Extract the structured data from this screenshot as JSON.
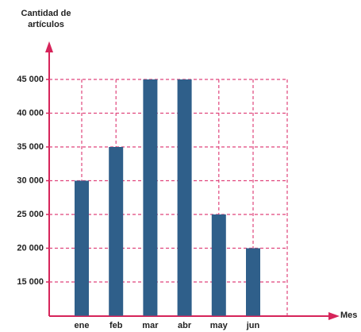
{
  "chart_data": {
    "type": "bar",
    "ylabel": "Cantidad de artículos",
    "xlabel": "Mes",
    "categories": [
      "ene",
      "feb",
      "mar",
      "abr",
      "may",
      "jun"
    ],
    "values": [
      30000,
      35000,
      45000,
      45000,
      25000,
      20000
    ],
    "color": "#2f5f8a",
    "ylim": [
      10000,
      50000
    ],
    "yticks": [
      {
        "value": 15000,
        "label": "15 000"
      },
      {
        "value": 20000,
        "label": "20 000"
      },
      {
        "value": 25000,
        "label": "25 000"
      },
      {
        "value": 30000,
        "label": "30 000"
      },
      {
        "value": 35000,
        "label": "35 000"
      },
      {
        "value": 40000,
        "label": "40 000"
      },
      {
        "value": 45000,
        "label": "45 000"
      }
    ],
    "grid": true
  }
}
